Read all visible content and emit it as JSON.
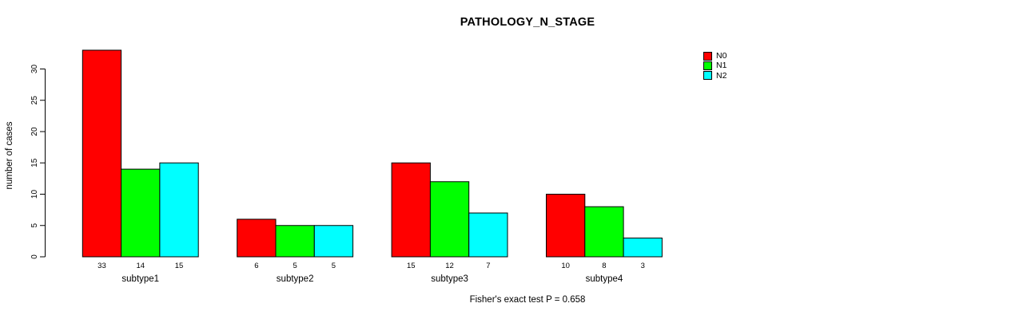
{
  "chart_data": {
    "type": "bar",
    "title": "PATHOLOGY_N_STAGE",
    "ylabel": "number of cases",
    "xlabel": "",
    "footnote": "Fisher's exact test P = 0.658",
    "categories": [
      "subtype1",
      "subtype2",
      "subtype3",
      "subtype4"
    ],
    "series": [
      {
        "name": "N0",
        "color": "#ff0000",
        "values": [
          33,
          6,
          15,
          10
        ]
      },
      {
        "name": "N1",
        "color": "#00ff00",
        "values": [
          14,
          5,
          12,
          8
        ]
      },
      {
        "name": "N2",
        "color": "#00ffff",
        "values": [
          15,
          5,
          7,
          3
        ]
      }
    ],
    "y_ticks": [
      0,
      5,
      10,
      15,
      20,
      25,
      30
    ],
    "ylim": [
      0,
      30
    ],
    "bar_value_labels": true,
    "grid": false,
    "legend_position": "top-right",
    "bar_border_color": "#000000",
    "background_color": "#ffffff"
  }
}
